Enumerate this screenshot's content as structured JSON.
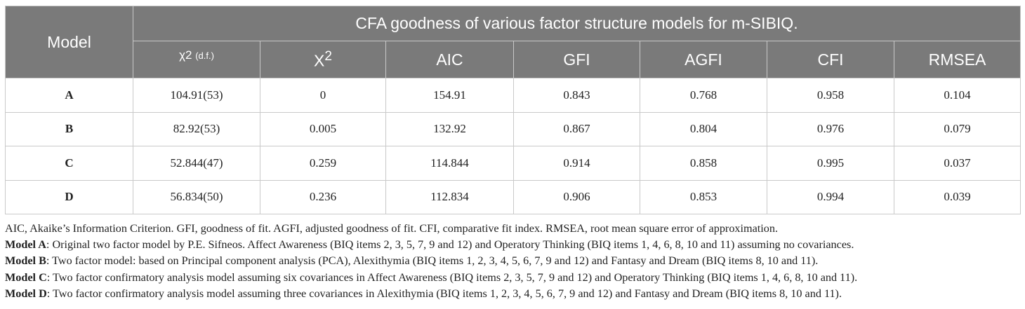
{
  "table": {
    "model_header": "Model",
    "group_header": "CFA goodness of various factor structure models for m-SIBIQ.",
    "columns": {
      "chi_df_symbol": "χ2",
      "chi_df_suffix": "(d.f.)",
      "x2_base": "X",
      "x2_sup": "2",
      "aic": "AIC",
      "gfi": "GFI",
      "agfi": "AGFI",
      "cfi": "CFI",
      "rmsea": "RMSEA"
    },
    "rows": [
      {
        "model": "A",
        "chi_df": "104.91(53)",
        "x2": "0",
        "aic": "154.91",
        "gfi": "0.843",
        "agfi": "0.768",
        "cfi": "0.958",
        "rmsea": "0.104"
      },
      {
        "model": "B",
        "chi_df": "82.92(53)",
        "x2": "0.005",
        "aic": "132.92",
        "gfi": "0.867",
        "agfi": "0.804",
        "cfi": "0.976",
        "rmsea": "0.079"
      },
      {
        "model": "C",
        "chi_df": "52.844(47)",
        "x2": "0.259",
        "aic": "114.844",
        "gfi": "0.914",
        "agfi": "0.858",
        "cfi": "0.995",
        "rmsea": "0.037"
      },
      {
        "model": "D",
        "chi_df": "56.834(50)",
        "x2": "0.236",
        "aic": "112.834",
        "gfi": "0.906",
        "agfi": "0.853",
        "cfi": "0.994",
        "rmsea": "0.039"
      }
    ]
  },
  "notes": {
    "abbreviations": "AIC, Akaike’s Information Criterion. GFI, goodness of fit. AGFI, adjusted goodness of fit. CFI, comparative fit index. RMSEA, root mean square error of approximation.",
    "models": [
      {
        "label": "Model A",
        "text": ": Original two factor model by P.E. Sifneos. Affect Awareness (BIQ items 2, 3, 5, 7, 9 and 12) and Operatory Thinking (BIQ items 1, 4, 6, 8, 10 and 11) assuming no covariances."
      },
      {
        "label": "Model B",
        "text": ": Two factor model: based on Principal component analysis (PCA), Alexithymia (BIQ items 1, 2, 3, 4, 5, 6, 7, 9 and 12) and Fantasy and Dream (BIQ items 8, 10 and 11)."
      },
      {
        "label": "Model C",
        "text": ": Two factor confirmatory analysis model assuming six covariances in Affect Awareness (BIQ items 2, 3, 5, 7, 9 and 12) and Operatory Thinking (BIQ items 1, 4, 6, 8, 10 and 11)."
      },
      {
        "label": "Model D",
        "text": ": Two factor confirmatory analysis model assuming three covariances in Alexithymia (BIQ items 1, 2, 3, 4, 5, 6, 7, 9 and 12) and Fantasy and Dream (BIQ items 8, 10 and 11)."
      }
    ]
  },
  "colors": {
    "header_bg": "#7a7a7a",
    "header_text": "#ffffff",
    "border": "#c9c9c9",
    "body_text": "#222222"
  }
}
